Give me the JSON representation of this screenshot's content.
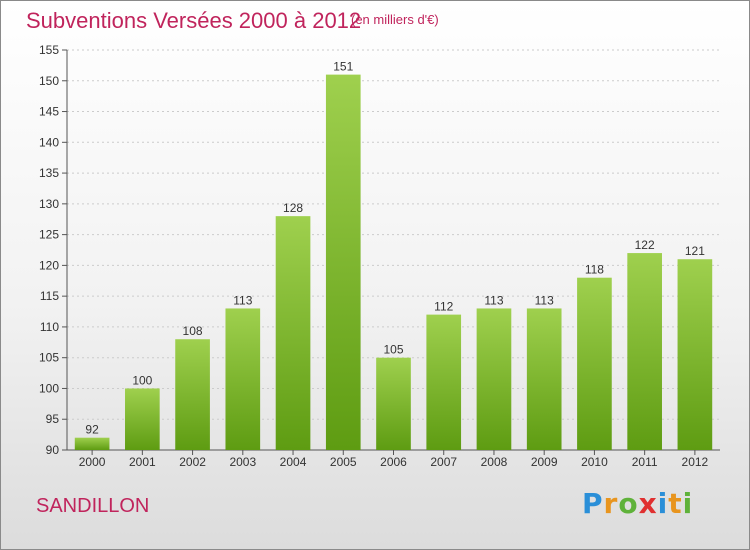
{
  "header": {
    "title": "Subventions Versées 2000 à 2012",
    "subtitle": "(en milliers d'€)"
  },
  "footer": {
    "place": "SANDILLON",
    "logo_letters": [
      "P",
      "r",
      "o",
      "x",
      "i",
      "t",
      "i"
    ]
  },
  "colors": {
    "title": "#c0245c",
    "bar_light": "#9fd04e",
    "bar_dark": "#5e9c12",
    "grid": "#cccccc"
  },
  "chart_data": {
    "type": "bar",
    "title": "Subventions Versées 2000 à 2012",
    "subtitle": "(en milliers d'€)",
    "categories": [
      "2000",
      "2001",
      "2002",
      "2003",
      "2004",
      "2005",
      "2006",
      "2007",
      "2008",
      "2009",
      "2010",
      "2011",
      "2012"
    ],
    "values": [
      92,
      100,
      108,
      113,
      128,
      151,
      105,
      112,
      113,
      113,
      118,
      122,
      121
    ],
    "ylim": [
      90,
      155
    ],
    "yticks": [
      90,
      95,
      100,
      105,
      110,
      115,
      120,
      125,
      130,
      135,
      140,
      145,
      150,
      155
    ],
    "grid": "horizontal dashed",
    "legend": "none"
  }
}
